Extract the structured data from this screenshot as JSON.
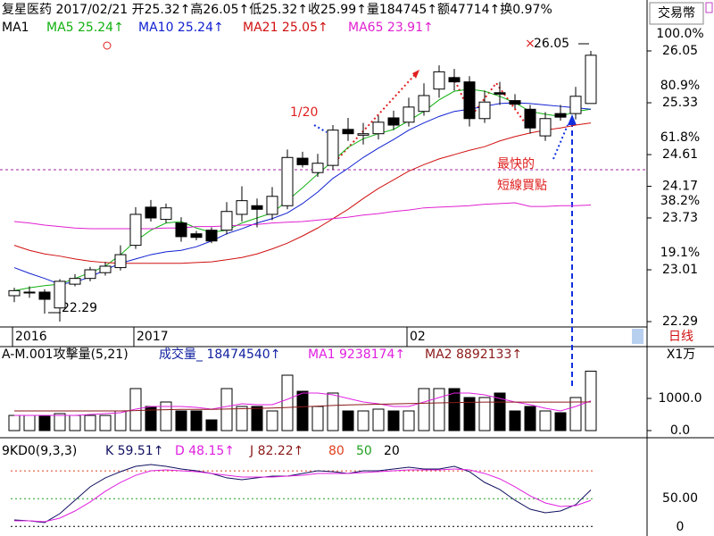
{
  "chart_data": [
    {
      "type": "candlestick",
      "title": "复星医药 2017/02/21 开25.32↑高26.05↑低25.32↑收25.99↑量184745↑额47714↑换0.97%",
      "indicator": "MA1",
      "currency_label": "交易幣",
      "tab_label": "日线",
      "annotations": [
        "1/20",
        "最快的",
        "短線買點"
      ],
      "categories": [
        "2016",
        null,
        null,
        null,
        null,
        null,
        null,
        null,
        "2017",
        null,
        null,
        null,
        null,
        null,
        null,
        null,
        null,
        null,
        null,
        null,
        null,
        null,
        null,
        null,
        null,
        null,
        "02",
        null,
        null,
        null,
        null,
        null,
        null,
        null,
        null,
        null,
        null,
        null,
        null
      ],
      "open": [
        22.65,
        22.7,
        22.7,
        22.48,
        22.81,
        22.89,
        22.97,
        23.04,
        23.35,
        23.88,
        23.71,
        23.66,
        23.51,
        23.56,
        23.56,
        23.78,
        23.9,
        23.78,
        23.9,
        24.56,
        24.36,
        24.46,
        24.96,
        24.88,
        24.9,
        25.12,
        25.06,
        25.21,
        25.52,
        25.68,
        25.62,
        25.11,
        25.47,
        25.36,
        25.24,
        24.87,
        25.18,
        25.18,
        25.32
      ],
      "high": [
        22.76,
        22.78,
        22.74,
        22.88,
        22.95,
        23.05,
        23.12,
        23.35,
        23.88,
        23.98,
        23.93,
        23.74,
        23.55,
        23.6,
        23.95,
        24.17,
        24.0,
        24.16,
        24.68,
        24.65,
        24.62,
        25.02,
        25.12,
        25.05,
        25.15,
        25.22,
        25.4,
        25.6,
        25.85,
        25.8,
        25.7,
        25.5,
        25.62,
        25.45,
        25.3,
        25.2,
        25.3,
        25.55,
        26.05
      ],
      "low": [
        22.56,
        22.62,
        22.4,
        22.29,
        22.78,
        22.85,
        22.93,
        23.0,
        23.3,
        23.68,
        23.66,
        23.4,
        23.42,
        23.38,
        23.5,
        23.68,
        23.6,
        23.7,
        23.85,
        24.43,
        24.3,
        24.4,
        24.8,
        24.75,
        24.82,
        24.95,
        25.0,
        25.15,
        25.4,
        25.5,
        25.0,
        25.05,
        25.3,
        25.25,
        24.9,
        24.8,
        25.08,
        25.1,
        25.32
      ],
      "close": [
        22.72,
        22.7,
        22.6,
        22.85,
        22.89,
        23.01,
        23.06,
        23.22,
        23.78,
        23.73,
        23.87,
        23.47,
        23.46,
        23.41,
        23.82,
        23.97,
        23.85,
        24.03,
        24.57,
        24.47,
        24.49,
        24.95,
        24.9,
        24.9,
        25.06,
        25.02,
        25.27,
        25.43,
        25.76,
        25.62,
        25.11,
        25.34,
        25.45,
        25.31,
        24.98,
        25.11,
        25.13,
        25.42,
        25.99
      ],
      "up_color": "#ffffff",
      "down_color": "#000000",
      "candle_stroke": "#000000",
      "series": [
        {
          "name": "MA5 25.24↑",
          "color": "#10b010",
          "values": [
            22.72,
            22.76,
            22.79,
            22.81,
            22.89,
            22.97,
            23.06,
            23.22,
            23.41,
            23.56,
            23.66,
            23.68,
            23.59,
            23.53,
            23.56,
            23.66,
            23.73,
            23.8,
            23.97,
            24.15,
            24.34,
            24.52,
            24.71,
            24.83,
            24.9,
            24.96,
            25.08,
            25.21,
            25.37,
            25.49,
            25.52,
            25.49,
            25.42,
            25.33,
            25.21,
            25.17,
            25.14,
            25.21,
            25.24
          ]
        },
        {
          "name": "MA10 25.24↑",
          "color": "#1020d0",
          "values": [
            23.04,
            22.96,
            22.89,
            22.81,
            22.84,
            22.91,
            23.01,
            23.1,
            23.16,
            23.22,
            23.26,
            23.28,
            23.33,
            23.41,
            23.51,
            23.58,
            23.66,
            23.72,
            23.8,
            23.93,
            24.09,
            24.28,
            24.42,
            24.57,
            24.7,
            24.82,
            24.95,
            25.05,
            25.14,
            25.21,
            25.24,
            25.28,
            25.32,
            25.33,
            25.32,
            25.3,
            25.28,
            25.26,
            25.24
          ]
        },
        {
          "name": "MA21 25.05↑",
          "color": "#d01010",
          "values": [
            23.35,
            23.28,
            23.23,
            23.2,
            23.16,
            23.13,
            23.11,
            23.1,
            23.1,
            23.1,
            23.1,
            23.1,
            23.11,
            23.12,
            23.15,
            23.18,
            23.23,
            23.3,
            23.38,
            23.48,
            23.59,
            23.72,
            23.85,
            24.0,
            24.14,
            24.26,
            24.38,
            24.47,
            24.55,
            24.61,
            24.67,
            24.72,
            24.8,
            24.86,
            24.91,
            24.95,
            24.98,
            25.02,
            25.05
          ]
        },
        {
          "name": "MA65 23.91↑",
          "color": "#e020d0",
          "values": [
            23.68,
            23.66,
            23.63,
            23.61,
            23.59,
            23.58,
            23.58,
            23.58,
            23.58,
            23.58,
            23.59,
            23.59,
            23.61,
            23.61,
            23.62,
            23.63,
            23.64,
            23.66,
            23.67,
            23.68,
            23.7,
            23.72,
            23.74,
            23.77,
            23.79,
            23.82,
            23.84,
            23.87,
            23.88,
            23.89,
            23.9,
            23.92,
            23.93,
            23.94,
            23.89,
            23.89,
            23.9,
            23.9,
            23.91
          ]
        }
      ],
      "ylim": [
        21.98,
        26.41
      ],
      "yticks": [
        22.29,
        23.01,
        23.73,
        24.17,
        24.61,
        25.33,
        26.05
      ],
      "fib_labels": [
        null,
        "19.1%",
        "38.2%",
        null,
        "61.8%",
        "80.9%",
        "100.0%"
      ]
    },
    {
      "type": "bar",
      "title": "A-M.001攻擊量(5,21)",
      "unit_label": "X1万",
      "series": [
        {
          "name": "成交量_ 18474540↑",
          "color": "#1020a0",
          "values": [
            472,
            472,
            472,
            528,
            472,
            472,
            472,
            611,
            1306,
            750,
            889,
            611,
            611,
            333,
            1306,
            750,
            750,
            611,
            1722,
            1222,
            750,
            1167,
            611,
            611,
            667,
            611,
            611,
            1306,
            1306,
            1306,
            1028,
            1028,
            1167,
            611,
            750,
            611,
            556,
            1028,
            1847.45
          ]
        },
        {
          "name": "MA1 9238174↑",
          "color": "#e020e0",
          "values": [
            472,
            472,
            472,
            472,
            472,
            500,
            528,
            556,
            667,
            750,
            750,
            750,
            722,
            667,
            750,
            833,
            806,
            806,
            972,
            1167,
            1167,
            1111,
            1000,
            889,
            833,
            750,
            750,
            889,
            1028,
            1167,
            1167,
            1111,
            1000,
            889,
            806,
            694,
            611,
            750,
            923.8174
          ]
        },
        {
          "name": "MA2 8892133↑",
          "color": "#8b1a1a",
          "values": [
            611,
            611,
            611,
            611,
            611,
            611,
            611,
            611,
            620,
            640,
            650,
            660,
            660,
            660,
            670,
            680,
            690,
            700,
            720,
            740,
            760,
            780,
            800,
            810,
            820,
            830,
            840,
            850,
            860,
            870,
            880,
            885,
            885,
            885,
            885,
            885,
            885,
            888,
            889.2133
          ]
        }
      ],
      "ylim": [
        -222,
        2472
      ],
      "yticks": [
        {
          "value": 0,
          "label": "0.0"
        },
        {
          "value": 1000,
          "label": "1000.0"
        }
      ]
    },
    {
      "type": "line",
      "title": "9KD0(9,3,3)",
      "extra_labels": [
        {
          "text": "J 82.22↑",
          "color": "#8b1a1a"
        }
      ],
      "levels": [
        {
          "value": 80,
          "color": "#e04020"
        },
        {
          "value": 50,
          "color": "#20a020"
        },
        {
          "value": 20,
          "color": "#000000"
        }
      ],
      "series": [
        {
          "name": "K 59.51↑",
          "color": "#101060",
          "values": [
            27.0,
            26.1,
            24.2,
            33.8,
            48.3,
            62.8,
            72.5,
            79.2,
            85.0,
            86.9,
            85.0,
            82.1,
            80.2,
            77.3,
            72.5,
            70.5,
            72.5,
            74.4,
            74.4,
            77.3,
            80.2,
            79.2,
            77.3,
            80.2,
            80.2,
            82.1,
            84.0,
            82.1,
            82.1,
            85.0,
            79.2,
            67.6,
            59.9,
            48.3,
            38.6,
            34.8,
            36.7,
            43.5,
            59.51
          ]
        },
        {
          "name": "D 48.15↑",
          "color": "#e020e0",
          "values": [
            26.1,
            26.1,
            25.1,
            29.0,
            36.7,
            46.4,
            58.0,
            67.6,
            75.3,
            80.2,
            81.1,
            80.2,
            79.2,
            77.3,
            75.3,
            73.4,
            73.4,
            73.4,
            74.4,
            75.3,
            77.3,
            77.3,
            77.3,
            78.2,
            79.2,
            80.2,
            81.1,
            81.1,
            81.1,
            82.1,
            81.1,
            77.3,
            71.5,
            62.8,
            53.1,
            45.4,
            41.5,
            42.5,
            48.15
          ]
        }
      ],
      "ylim": [
        0,
        113
      ],
      "yticks": [
        0,
        {
          "value": 50,
          "label": "50.00"
        }
      ]
    }
  ]
}
